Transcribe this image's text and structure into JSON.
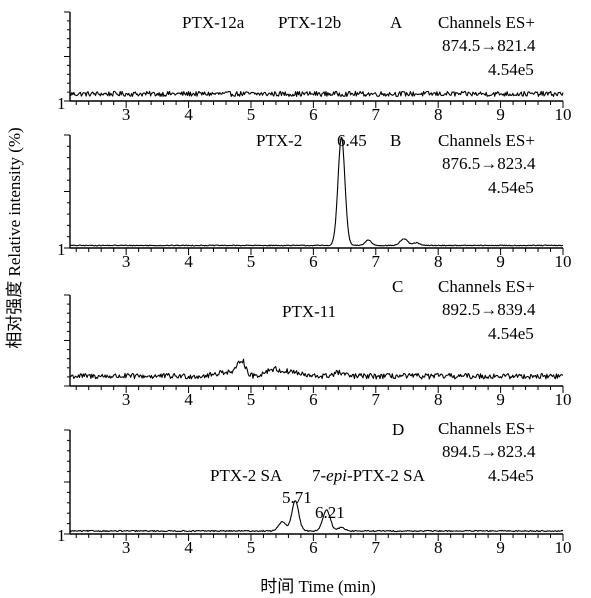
{
  "chart_data": {
    "type": "line",
    "ylabel": "相对强度 Relative intensity (%)",
    "xlabel": "时间 Time (min)",
    "xlim": [
      2.1,
      10
    ],
    "x_ticks": [
      "3",
      "4",
      "5",
      "6",
      "7",
      "8",
      "9",
      "10"
    ],
    "panels": [
      {
        "letter": "A",
        "channel": [
          "Channels ES+",
          "874.5→821.4",
          "4.54e5"
        ],
        "y_tick_label": "1",
        "ylim": [
          0,
          100
        ],
        "annotations": [
          "PTX-12a",
          "PTX-12b"
        ],
        "peaks": [],
        "series": [
          {
            "baseline": 6,
            "noise": 3,
            "peaks": []
          }
        ]
      },
      {
        "letter": "B",
        "channel": [
          "Channels ES+",
          "876.5→823.4",
          "4.54e5"
        ],
        "y_tick_label": "1",
        "ylim": [
          0,
          100
        ],
        "annotations": [
          "PTX-2"
        ],
        "peaks": [
          {
            "x": 6.45,
            "label": "6.45"
          }
        ],
        "series": [
          {
            "baseline": 0.5,
            "noise": 0.4,
            "peaks": [
              {
                "x": 6.45,
                "height": 100,
                "width": 0.055
              },
              {
                "x": 6.88,
                "height": 5,
                "width": 0.05
              },
              {
                "x": 7.45,
                "height": 6,
                "width": 0.06
              },
              {
                "x": 7.65,
                "height": 2.5,
                "width": 0.05
              }
            ]
          }
        ]
      },
      {
        "letter": "C",
        "channel": [
          "Channels ES+",
          "892.5→839.4",
          "4.54e5"
        ],
        "y_tick_label": "1",
        "ylim": [
          0,
          100
        ],
        "annotations": [
          "PTX-11"
        ],
        "peaks": [],
        "series": [
          {
            "baseline": 9,
            "noise": 3.2,
            "peaks": [
              {
                "x": 4.6,
                "height": 5,
                "width": 0.15
              },
              {
                "x": 4.85,
                "height": 18,
                "width": 0.06
              },
              {
                "x": 5.35,
                "height": 8,
                "width": 0.12
              },
              {
                "x": 5.65,
                "height": 5,
                "width": 0.12
              },
              {
                "x": 6.4,
                "height": 4,
                "width": 0.08
              }
            ]
          }
        ]
      },
      {
        "letter": "D",
        "channel": [
          "Channels ES+",
          "894.5→823.4",
          "4.54e5"
        ],
        "y_tick_label": "1",
        "ylim": [
          0,
          100
        ],
        "annotations": [
          "PTX-2 SA",
          "7-epi-PTX-2 SA"
        ],
        "peaks": [
          {
            "x": 5.71,
            "label": "5.71"
          },
          {
            "x": 6.21,
            "label": "6.21"
          }
        ],
        "series": [
          {
            "baseline": 1,
            "noise": 0.6,
            "peaks": [
              {
                "x": 5.5,
                "height": 9,
                "width": 0.06
              },
              {
                "x": 5.71,
                "height": 30,
                "width": 0.055
              },
              {
                "x": 6.21,
                "height": 21,
                "width": 0.06
              },
              {
                "x": 6.45,
                "height": 4,
                "width": 0.05
              }
            ]
          }
        ]
      }
    ]
  }
}
